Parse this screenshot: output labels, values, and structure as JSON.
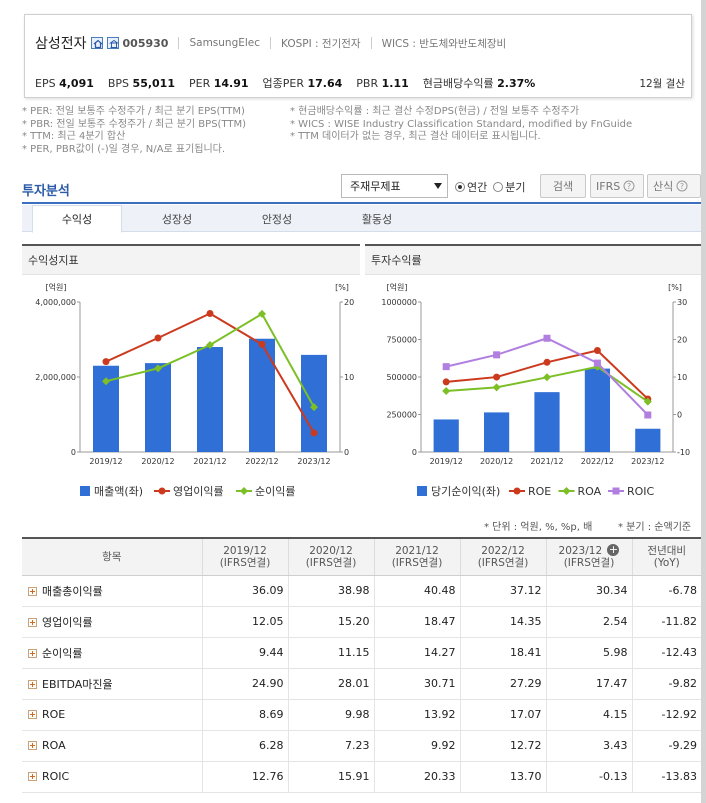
{
  "header": {
    "company": "삼성전자",
    "code": "005930",
    "eng_name": "SamsungElec",
    "market": "KOSPI : 전기전자",
    "wics": "WICS : 반도체와반도체장비",
    "stats": [
      {
        "label": "EPS",
        "value": "4,091"
      },
      {
        "label": "BPS",
        "value": "55,011"
      },
      {
        "label": "PER",
        "value": "14.91"
      },
      {
        "label": "업종PER",
        "value": "17.64"
      },
      {
        "label": "PBR",
        "value": "1.11"
      },
      {
        "label": "현금배당수익률",
        "value": "2.37%"
      }
    ],
    "settlement": "12월 결산"
  },
  "notes_left": [
    "* PER: 전일 보통주 수정주가 / 최근 분기 EPS(TTM)",
    "* PBR: 전일 보통주 수정주가 / 최근 분기 BPS(TTM)",
    "* TTM: 최근 4분기 합산",
    "* PER, PBR값이 (-)일 경우, N/A로 표기됩니다."
  ],
  "notes_right": [
    "* 현금배당수익률 : 최근 결산 수정DPS(현금) / 전일 보통주 수정주가",
    "* WICS : WISE Industry Classification Standard, modified by FnGuide",
    "* TTM 데이터가 없는 경우, 최근 결산 데이터로 표시됩니다."
  ],
  "section_title": "투자분석",
  "controls": {
    "select_value": "주재무제표",
    "radio_annual": "연간",
    "radio_quarter": "분기",
    "search_btn": "검색",
    "ifrs_btn": "IFRS",
    "new_btn": "산식"
  },
  "tabs": [
    "수익성",
    "성장성",
    "안정성",
    "활동성"
  ],
  "panels": {
    "left_title": "수익성지표",
    "right_title": "투자수익률"
  },
  "chart_data": [
    {
      "type": "bar+line",
      "title": "수익성지표",
      "categories": [
        "2019/12",
        "2020/12",
        "2021/12",
        "2022/12",
        "2023/12"
      ],
      "left_unit": "[억원]",
      "right_unit": "[%]",
      "left_ticks": [
        "4,000,000",
        "2,000,000",
        "0"
      ],
      "right_ticks": [
        "20",
        "10",
        "0"
      ],
      "ylim_left": [
        0,
        4000000
      ],
      "ylim_right": [
        0,
        20
      ],
      "bar_series": {
        "name": "매출액(좌)",
        "color": "#2f6fd6",
        "values": [
          2300000,
          2370000,
          2800000,
          3020000,
          2590000
        ]
      },
      "line_series": [
        {
          "name": "영업이익률",
          "color": "#cc3a1e",
          "values": [
            12.05,
            15.2,
            18.47,
            14.35,
            2.54
          ]
        },
        {
          "name": "순이익률",
          "color": "#7cbf26",
          "values": [
            9.44,
            11.15,
            14.27,
            18.41,
            5.98
          ]
        }
      ]
    },
    {
      "type": "bar+line",
      "title": "투자수익률",
      "categories": [
        "2019/12",
        "2020/12",
        "2021/12",
        "2022/12",
        "2023/12"
      ],
      "left_unit": "[억원]",
      "right_unit": "[%]",
      "left_ticks": [
        "1000000",
        "750000",
        "500000",
        "250000",
        "0"
      ],
      "right_ticks": [
        "30",
        "20",
        "10",
        "0",
        "-10"
      ],
      "ylim_left": [
        0,
        1000000
      ],
      "ylim_right": [
        -10,
        30
      ],
      "bar_series": {
        "name": "당기순이익(좌)",
        "color": "#2f6fd6",
        "values": [
          217000,
          264000,
          399000,
          556000,
          155000
        ]
      },
      "line_series": [
        {
          "name": "ROE",
          "color": "#cc3a1e",
          "values": [
            8.69,
            9.98,
            13.92,
            17.07,
            4.15
          ]
        },
        {
          "name": "ROA",
          "color": "#7cbf26",
          "values": [
            6.28,
            7.23,
            9.92,
            12.72,
            3.43
          ]
        },
        {
          "name": "ROIC",
          "color": "#b07fe0",
          "values": [
            12.76,
            15.91,
            20.33,
            13.7,
            -0.13
          ]
        }
      ]
    }
  ],
  "table": {
    "unit_note": "* 단위 : 억원, %, %p, 배",
    "quarter_note": "* 분기 : 순액기준",
    "headers": [
      {
        "l1": "항목",
        "l2": ""
      },
      {
        "l1": "2019/12",
        "l2": "(IFRS연결)"
      },
      {
        "l1": "2020/12",
        "l2": "(IFRS연결)"
      },
      {
        "l1": "2021/12",
        "l2": "(IFRS연결)"
      },
      {
        "l1": "2022/12",
        "l2": "(IFRS연결)"
      },
      {
        "l1": "2023/12",
        "l2": "(IFRS연결)"
      },
      {
        "l1": "전년대비",
        "l2": "(YoY)"
      }
    ],
    "rows": [
      {
        "name": "매출총이익률",
        "values": [
          "36.09",
          "38.98",
          "40.48",
          "37.12",
          "30.34"
        ],
        "yoy": "-6.78"
      },
      {
        "name": "영업이익률",
        "values": [
          "12.05",
          "15.20",
          "18.47",
          "14.35",
          "2.54"
        ],
        "yoy": "-11.82"
      },
      {
        "name": "순이익률",
        "values": [
          "9.44",
          "11.15",
          "14.27",
          "18.41",
          "5.98"
        ],
        "yoy": "-12.43"
      },
      {
        "name": "EBITDA마진율",
        "values": [
          "24.90",
          "28.01",
          "30.71",
          "27.29",
          "17.47"
        ],
        "yoy": "-9.82"
      },
      {
        "name": "ROE",
        "values": [
          "8.69",
          "9.98",
          "13.92",
          "17.07",
          "4.15"
        ],
        "yoy": "-12.92"
      },
      {
        "name": "ROA",
        "values": [
          "6.28",
          "7.23",
          "9.92",
          "12.72",
          "3.43"
        ],
        "yoy": "-9.29"
      },
      {
        "name": "ROIC",
        "values": [
          "12.76",
          "15.91",
          "20.33",
          "13.70",
          "-0.13"
        ],
        "yoy": "-13.83"
      }
    ]
  },
  "colors": {
    "accent": "#2b5aa8",
    "negative": "#dd2222"
  }
}
